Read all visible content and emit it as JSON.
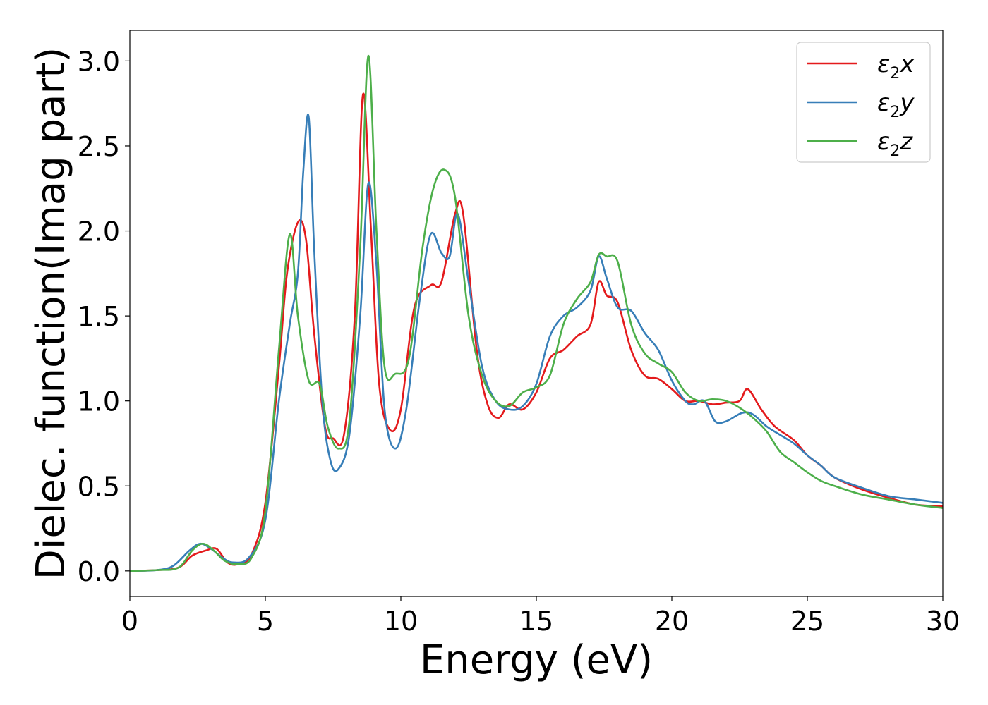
{
  "chart_data": {
    "type": "line",
    "xlabel": "Energy (eV)",
    "ylabel": "Dielec. function(Imag part)",
    "xlim": [
      0,
      30
    ],
    "ylim": [
      -0.15,
      3.18
    ],
    "xticks": [
      0,
      5,
      10,
      15,
      20,
      25,
      30
    ],
    "yticks": [
      0.0,
      0.5,
      1.0,
      1.5,
      2.0,
      2.5,
      3.0
    ],
    "xtick_labels": [
      "0",
      "5",
      "10",
      "15",
      "20",
      "25",
      "30"
    ],
    "ytick_labels": [
      "0.0",
      "0.5",
      "1.0",
      "1.5",
      "2.0",
      "2.5",
      "3.0"
    ],
    "grid": false,
    "legend_position": "top-right",
    "series": [
      {
        "name": "ε₂x",
        "legend_base": "ε",
        "legend_sub": "2",
        "legend_var": "x",
        "color": "#e41a1c",
        "points": [
          [
            0,
            0
          ],
          [
            1,
            0.005
          ],
          [
            1.8,
            0.02
          ],
          [
            2.3,
            0.09
          ],
          [
            2.8,
            0.12
          ],
          [
            3.2,
            0.13
          ],
          [
            3.6,
            0.05
          ],
          [
            4,
            0.04
          ],
          [
            4.5,
            0.1
          ],
          [
            5,
            0.4
          ],
          [
            5.5,
            1.2
          ],
          [
            5.8,
            1.75
          ],
          [
            6.2,
            2.05
          ],
          [
            6.5,
            1.95
          ],
          [
            6.8,
            1.4
          ],
          [
            7.2,
            0.85
          ],
          [
            7.5,
            0.78
          ],
          [
            7.9,
            0.8
          ],
          [
            8.3,
            1.5
          ],
          [
            8.6,
            2.8
          ],
          [
            8.9,
            2.0
          ],
          [
            9.2,
            1.1
          ],
          [
            9.6,
            0.83
          ],
          [
            10,
            0.95
          ],
          [
            10.5,
            1.55
          ],
          [
            11.1,
            1.68
          ],
          [
            11.5,
            1.7
          ],
          [
            12,
            2.1
          ],
          [
            12.3,
            2.1
          ],
          [
            12.8,
            1.3
          ],
          [
            13.2,
            0.98
          ],
          [
            13.6,
            0.9
          ],
          [
            14,
            0.98
          ],
          [
            14.5,
            0.95
          ],
          [
            15,
            1.05
          ],
          [
            15.5,
            1.25
          ],
          [
            16,
            1.3
          ],
          [
            16.5,
            1.38
          ],
          [
            17,
            1.45
          ],
          [
            17.3,
            1.7
          ],
          [
            17.6,
            1.62
          ],
          [
            18,
            1.58
          ],
          [
            18.5,
            1.3
          ],
          [
            19,
            1.15
          ],
          [
            19.5,
            1.13
          ],
          [
            20,
            1.07
          ],
          [
            20.5,
            1.0
          ],
          [
            21,
            1.0
          ],
          [
            21.5,
            0.98
          ],
          [
            22,
            0.99
          ],
          [
            22.5,
            1.0
          ],
          [
            22.8,
            1.07
          ],
          [
            23.3,
            0.95
          ],
          [
            23.8,
            0.85
          ],
          [
            24.5,
            0.77
          ],
          [
            25,
            0.68
          ],
          [
            25.5,
            0.62
          ],
          [
            26,
            0.55
          ],
          [
            27,
            0.48
          ],
          [
            28,
            0.43
          ],
          [
            29,
            0.39
          ],
          [
            30,
            0.38
          ]
        ]
      },
      {
        "name": "ε₂y",
        "legend_base": "ε",
        "legend_sub": "2",
        "legend_var": "y",
        "color": "#377eb8",
        "points": [
          [
            0,
            0
          ],
          [
            1,
            0.005
          ],
          [
            1.6,
            0.03
          ],
          [
            2.2,
            0.12
          ],
          [
            2.6,
            0.16
          ],
          [
            3,
            0.13
          ],
          [
            3.4,
            0.08
          ],
          [
            3.8,
            0.05
          ],
          [
            4.4,
            0.08
          ],
          [
            5,
            0.3
          ],
          [
            5.5,
            1.0
          ],
          [
            5.9,
            1.45
          ],
          [
            6.2,
            1.75
          ],
          [
            6.4,
            2.35
          ],
          [
            6.6,
            2.67
          ],
          [
            6.8,
            1.9
          ],
          [
            7.1,
            1.0
          ],
          [
            7.4,
            0.65
          ],
          [
            7.7,
            0.6
          ],
          [
            8.1,
            0.8
          ],
          [
            8.5,
            1.5
          ],
          [
            8.8,
            2.28
          ],
          [
            9.1,
            1.8
          ],
          [
            9.4,
            0.95
          ],
          [
            9.8,
            0.72
          ],
          [
            10.2,
            0.95
          ],
          [
            10.7,
            1.6
          ],
          [
            11.1,
            1.98
          ],
          [
            11.5,
            1.87
          ],
          [
            11.8,
            1.85
          ],
          [
            12.1,
            2.1
          ],
          [
            12.5,
            1.7
          ],
          [
            13,
            1.2
          ],
          [
            13.5,
            1.0
          ],
          [
            14,
            0.95
          ],
          [
            14.5,
            0.97
          ],
          [
            15,
            1.1
          ],
          [
            15.5,
            1.38
          ],
          [
            16,
            1.5
          ],
          [
            16.5,
            1.55
          ],
          [
            17,
            1.65
          ],
          [
            17.3,
            1.85
          ],
          [
            17.6,
            1.72
          ],
          [
            18,
            1.55
          ],
          [
            18.5,
            1.53
          ],
          [
            19,
            1.4
          ],
          [
            19.5,
            1.3
          ],
          [
            20,
            1.12
          ],
          [
            20.5,
            1.0
          ],
          [
            20.8,
            0.98
          ],
          [
            21.2,
            1.0
          ],
          [
            21.6,
            0.88
          ],
          [
            22,
            0.88
          ],
          [
            22.6,
            0.93
          ],
          [
            23,
            0.92
          ],
          [
            23.5,
            0.85
          ],
          [
            24,
            0.8
          ],
          [
            24.5,
            0.75
          ],
          [
            25,
            0.68
          ],
          [
            25.5,
            0.62
          ],
          [
            26,
            0.55
          ],
          [
            27,
            0.49
          ],
          [
            28,
            0.44
          ],
          [
            29,
            0.42
          ],
          [
            30,
            0.4
          ]
        ]
      },
      {
        "name": "ε₂z",
        "legend_base": "ε",
        "legend_sub": "2",
        "legend_var": "z",
        "color": "#4daf4a",
        "points": [
          [
            0,
            0
          ],
          [
            1,
            0.005
          ],
          [
            1.8,
            0.02
          ],
          [
            2.3,
            0.12
          ],
          [
            2.7,
            0.16
          ],
          [
            3.1,
            0.12
          ],
          [
            3.5,
            0.06
          ],
          [
            4,
            0.04
          ],
          [
            4.5,
            0.08
          ],
          [
            5,
            0.35
          ],
          [
            5.5,
            1.3
          ],
          [
            5.9,
            1.98
          ],
          [
            6.2,
            1.5
          ],
          [
            6.6,
            1.12
          ],
          [
            7,
            1.1
          ],
          [
            7.3,
            0.85
          ],
          [
            7.7,
            0.72
          ],
          [
            8.1,
            0.88
          ],
          [
            8.5,
            1.9
          ],
          [
            8.8,
            3.03
          ],
          [
            9.1,
            2.0
          ],
          [
            9.4,
            1.2
          ],
          [
            9.8,
            1.16
          ],
          [
            10.3,
            1.25
          ],
          [
            10.8,
            1.9
          ],
          [
            11.2,
            2.25
          ],
          [
            11.6,
            2.36
          ],
          [
            12,
            2.2
          ],
          [
            12.5,
            1.5
          ],
          [
            13,
            1.15
          ],
          [
            13.5,
            1.0
          ],
          [
            14,
            0.97
          ],
          [
            14.5,
            1.05
          ],
          [
            15,
            1.08
          ],
          [
            15.5,
            1.15
          ],
          [
            16,
            1.45
          ],
          [
            16.5,
            1.6
          ],
          [
            17,
            1.7
          ],
          [
            17.3,
            1.86
          ],
          [
            17.6,
            1.85
          ],
          [
            18,
            1.82
          ],
          [
            18.5,
            1.45
          ],
          [
            19,
            1.28
          ],
          [
            19.5,
            1.22
          ],
          [
            20,
            1.17
          ],
          [
            20.5,
            1.05
          ],
          [
            21,
            1.0
          ],
          [
            21.5,
            1.01
          ],
          [
            22,
            1.0
          ],
          [
            22.5,
            0.96
          ],
          [
            23,
            0.9
          ],
          [
            23.5,
            0.82
          ],
          [
            24,
            0.7
          ],
          [
            24.5,
            0.64
          ],
          [
            25,
            0.58
          ],
          [
            25.5,
            0.53
          ],
          [
            26,
            0.5
          ],
          [
            27,
            0.45
          ],
          [
            28,
            0.42
          ],
          [
            29,
            0.39
          ],
          [
            30,
            0.37
          ]
        ]
      }
    ]
  }
}
